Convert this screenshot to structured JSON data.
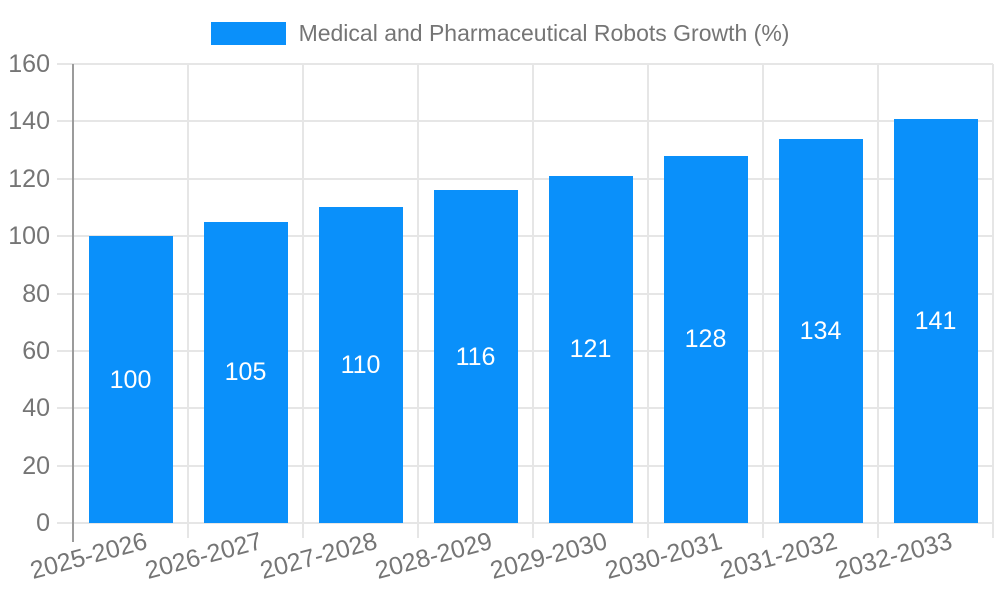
{
  "legend": {
    "label": "Medical and Pharmaceutical Robots Growth (%)"
  },
  "colors": {
    "bar": "#0A90FA",
    "grid_line": "#E6E6E6",
    "axis_line": "#9B9B9B",
    "axis_text": "#757575",
    "value_label_text": "#FFFFFF",
    "background": "#FFFFFF"
  },
  "y_axis": {
    "tick_labels": [
      "0",
      "20",
      "40",
      "60",
      "80",
      "100",
      "120",
      "140",
      "160"
    ]
  },
  "chart_data": {
    "type": "bar",
    "title": "Medical and Pharmaceutical Robots Growth (%)",
    "categories": [
      "2025-2026",
      "2026-2027",
      "2027-2028",
      "2028-2029",
      "2029-2030",
      "2030-2031",
      "2031-2032",
      "2032-2033"
    ],
    "values": [
      100,
      105,
      110,
      116,
      121,
      128,
      134,
      141
    ],
    "series": [
      {
        "name": "Medical and Pharmaceutical Robots Growth (%)",
        "values": [
          100,
          105,
          110,
          116,
          121,
          128,
          134,
          141
        ]
      }
    ],
    "xlabel": "",
    "ylabel": "",
    "ylim": [
      0,
      160
    ],
    "ytick_step": 20,
    "grid": true,
    "legend_position": "top-center",
    "value_labels": "inside-middle-white",
    "x_label_rotation_deg": -15,
    "bar_color": "#0A90FA"
  }
}
